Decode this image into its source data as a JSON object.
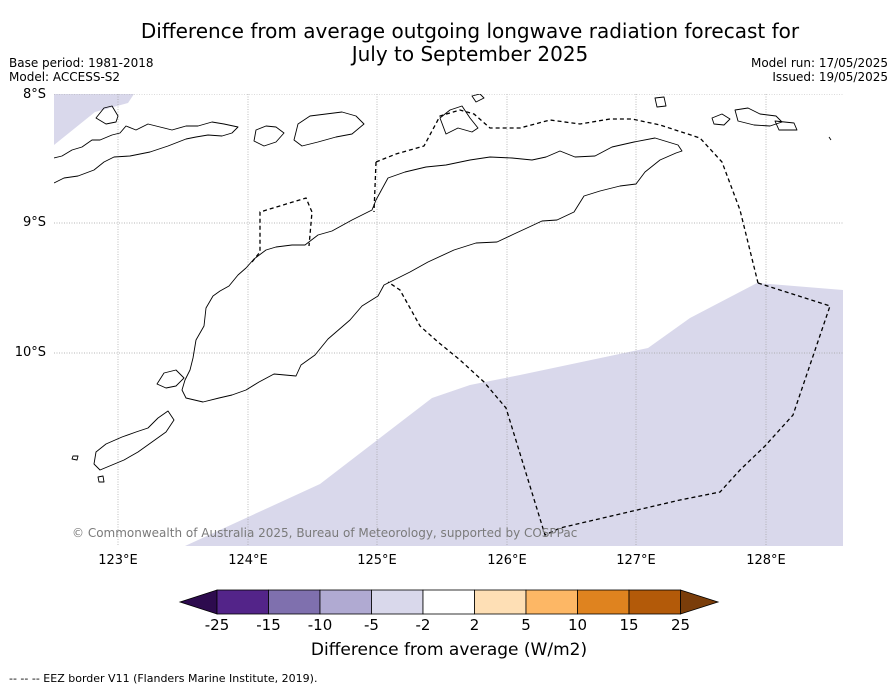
{
  "title_line1": "Difference from average outgoing longwave radiation forecast for",
  "title_line2": "July to September 2025",
  "base_period": "Base period: 1981-2018",
  "model": "Model: ACCESS-S2",
  "model_run": "Model run: 17/05/2025",
  "issued": "Issued: 19/05/2025",
  "lat_labels": [
    "8°S",
    "9°S",
    "10°S"
  ],
  "lon_labels": [
    "123°E",
    "124°E",
    "125°E",
    "126°E",
    "127°E",
    "128°E"
  ],
  "copyright": "© Commonwealth of Australia 2025, Bureau of Meteorology, supported by COSPPac",
  "colorbar": {
    "ticks": [
      "-25",
      "-15",
      "-10",
      "-5",
      "-2",
      "2",
      "5",
      "10",
      "15",
      "25"
    ],
    "colors": [
      "#2d0b4e",
      "#532489",
      "#7f70ae",
      "#b0aad2",
      "#d9d8eb",
      "#ffffff",
      "#fedfb5",
      "#fdb765",
      "#df831f",
      "#b35a09",
      "#7a3d0a"
    ],
    "label": "Difference from average (W/m2)"
  },
  "footnote": "--  --  -- EEZ border V11 (Flanders Marine Institute, 2019).",
  "colors": {
    "anomaly_light_purple": "#d9d8eb",
    "coastline": "#000000",
    "gridline": "#a0a0a0"
  }
}
